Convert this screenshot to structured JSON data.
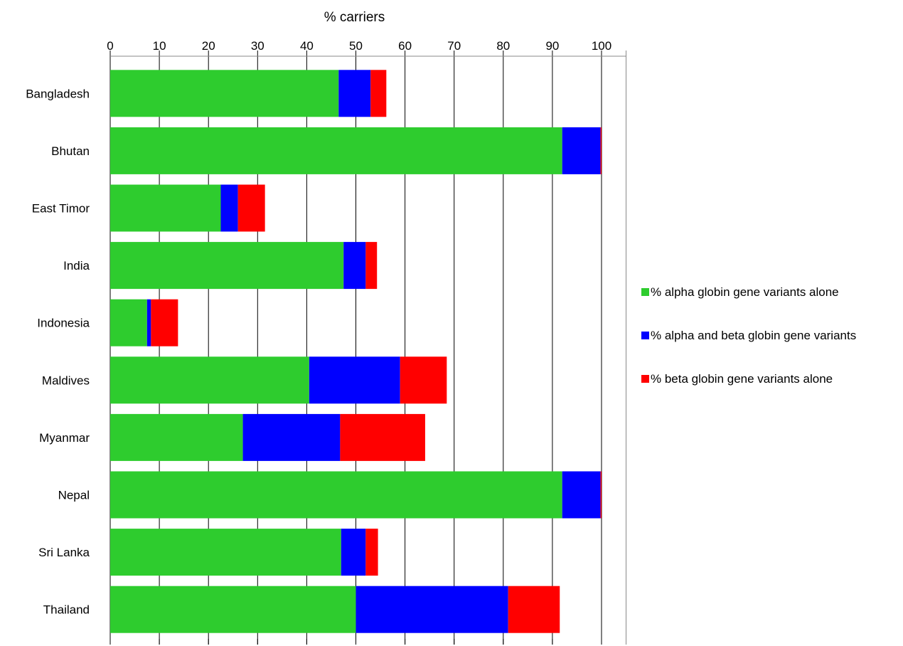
{
  "chart_data": {
    "type": "bar",
    "orientation": "horizontal",
    "stacked": true,
    "xlabel": "% carriers",
    "xlim": [
      0,
      105
    ],
    "x_ticks": [
      0,
      10,
      20,
      30,
      40,
      50,
      60,
      70,
      80,
      90,
      100
    ],
    "x_axis_position": "top",
    "grid": true,
    "legend_position": "right",
    "categories": [
      "Bangladesh",
      "Bhutan",
      "East Timor",
      "India",
      "Indonesia",
      "Maldives",
      "Myanmar",
      "Nepal",
      "Sri Lanka",
      "Thailand"
    ],
    "series": [
      {
        "name": "% alpha globin gene variants alone",
        "color": "#2ecc2e",
        "values": [
          46.5,
          92.0,
          22.5,
          47.5,
          7.5,
          40.5,
          27.0,
          92.0,
          47.0,
          50.0
        ]
      },
      {
        "name": "% alpha and beta globin gene variants",
        "color": "#0000ff",
        "values": [
          6.5,
          7.8,
          3.5,
          4.5,
          0.8,
          18.5,
          19.8,
          7.8,
          5.0,
          31.0
        ]
      },
      {
        "name": "% beta globin gene variants alone",
        "color": "#ff0000",
        "values": [
          3.2,
          0.2,
          5.5,
          2.3,
          5.5,
          9.5,
          17.3,
          0.2,
          2.5,
          10.5
        ]
      }
    ]
  }
}
